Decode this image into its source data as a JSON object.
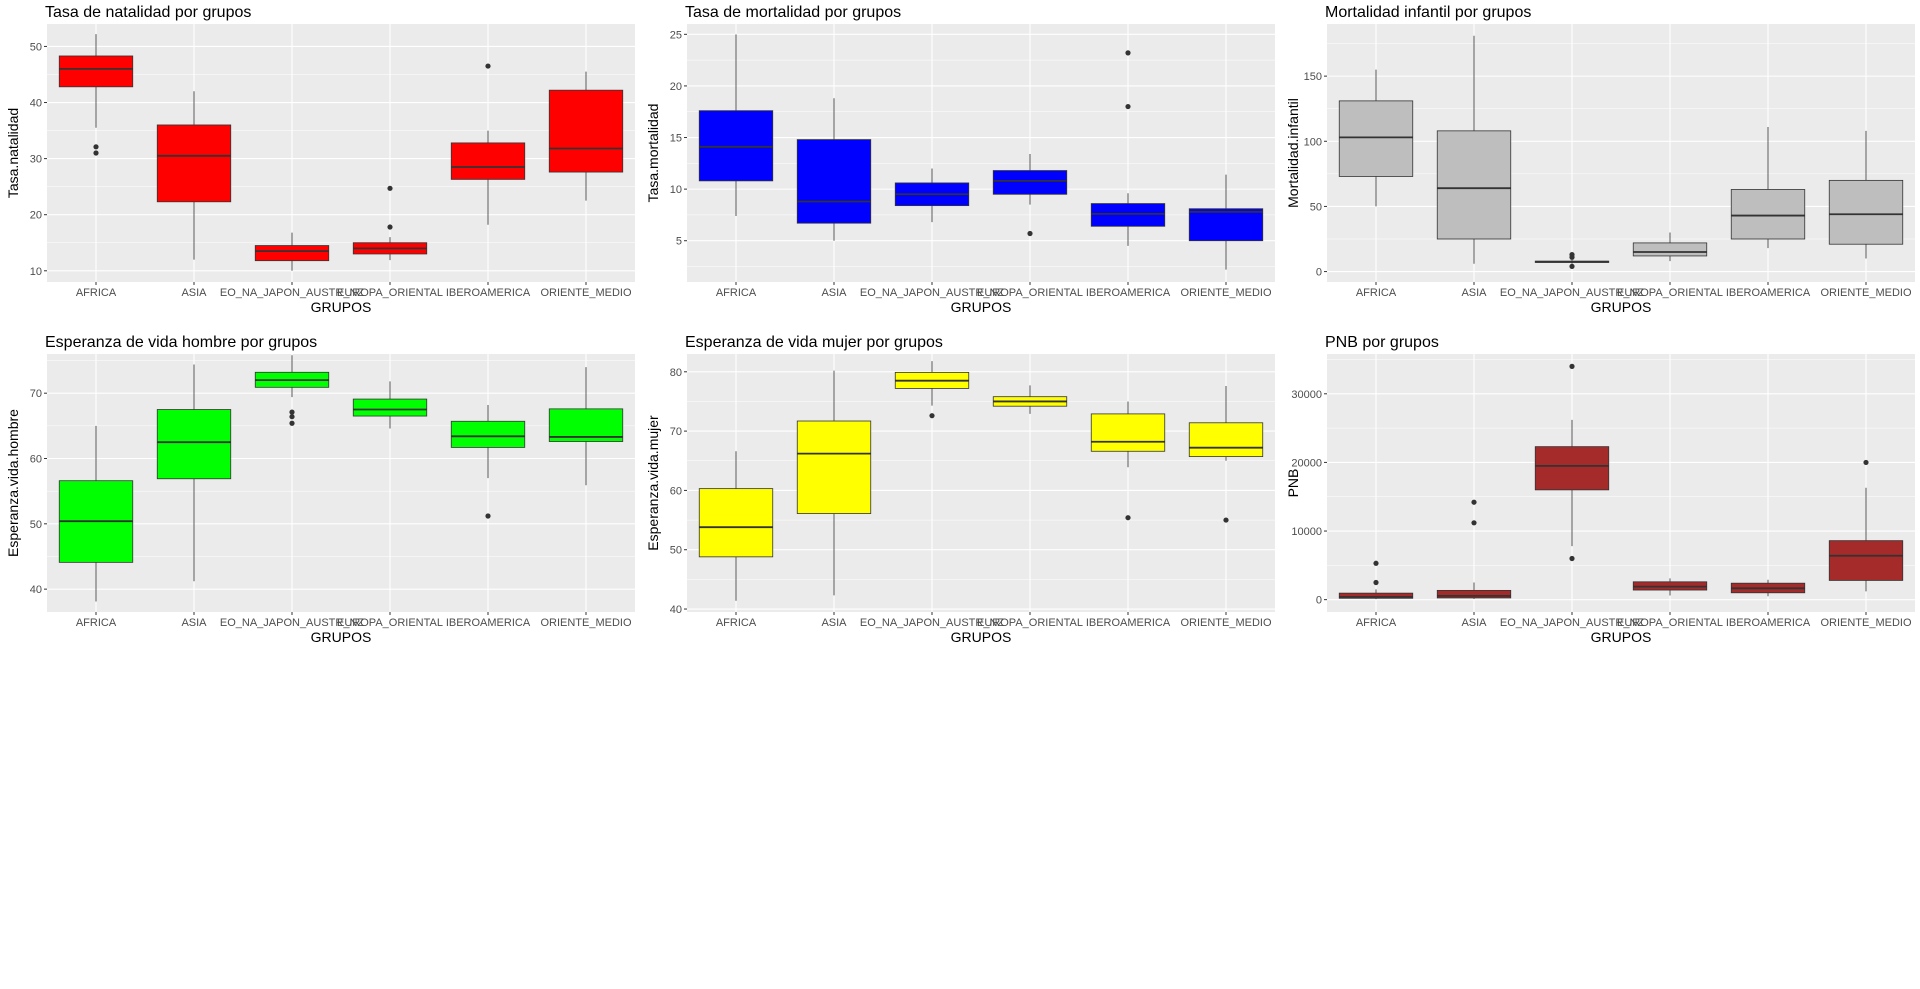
{
  "chart_data": [
    {
      "type": "boxplot",
      "title": "Tasa de natalidad por grupos",
      "xlabel": "GRUPOS",
      "ylabel": "Tasa.natalidad",
      "fill": "#ff0000",
      "categories": [
        "AFRICA",
        "ASIA",
        "EO_NA_JAPON_AUSTR_NZ",
        "EUROPA_ORIENTAL",
        "IBEROAMERICA",
        "ORIENTE_MEDIO"
      ],
      "ylim": [
        8,
        54
      ],
      "yticks": [
        10,
        20,
        30,
        40,
        50
      ],
      "boxes": [
        {
          "whisker_low": 35.5,
          "q1": 42.8,
          "median": 46.0,
          "q3": 48.3,
          "whisker_high": 52.2,
          "outliers": [
            31.0,
            32.1
          ]
        },
        {
          "whisker_low": 12.0,
          "q1": 22.3,
          "median": 30.5,
          "q3": 36.0,
          "whisker_high": 42.0,
          "outliers": []
        },
        {
          "whisker_low": 10.0,
          "q1": 11.8,
          "median": 13.5,
          "q3": 14.5,
          "whisker_high": 16.8,
          "outliers": []
        },
        {
          "whisker_low": 11.9,
          "q1": 13.0,
          "median": 14.0,
          "q3": 15.0,
          "whisker_high": 16.0,
          "outliers": [
            17.8,
            24.7
          ]
        },
        {
          "whisker_low": 18.2,
          "q1": 26.3,
          "median": 28.5,
          "q3": 32.8,
          "whisker_high": 35.0,
          "outliers": [
            46.5
          ]
        },
        {
          "whisker_low": 22.5,
          "q1": 27.6,
          "median": 31.8,
          "q3": 42.2,
          "whisker_high": 45.5,
          "outliers": []
        }
      ]
    },
    {
      "type": "boxplot",
      "title": "Tasa de mortalidad por grupos",
      "xlabel": "GRUPOS",
      "ylabel": "Tasa.mortalidad",
      "fill": "#0000ff",
      "categories": [
        "AFRICA",
        "ASIA",
        "EO_NA_JAPON_AUSTR_NZ",
        "EUROPA_ORIENTAL",
        "IBEROAMERICA",
        "ORIENTE_MEDIO"
      ],
      "ylim": [
        1,
        26
      ],
      "yticks": [
        5,
        10,
        15,
        20,
        25
      ],
      "boxes": [
        {
          "whisker_low": 7.4,
          "q1": 10.8,
          "median": 14.1,
          "q3": 17.6,
          "whisker_high": 25.0,
          "outliers": []
        },
        {
          "whisker_low": 5.0,
          "q1": 6.7,
          "median": 8.8,
          "q3": 14.8,
          "whisker_high": 18.8,
          "outliers": []
        },
        {
          "whisker_low": 6.8,
          "q1": 8.4,
          "median": 9.5,
          "q3": 10.6,
          "whisker_high": 12.0,
          "outliers": []
        },
        {
          "whisker_low": 8.5,
          "q1": 9.5,
          "median": 10.8,
          "q3": 11.8,
          "whisker_high": 13.4,
          "outliers": [
            5.7
          ]
        },
        {
          "whisker_low": 4.5,
          "q1": 6.4,
          "median": 7.6,
          "q3": 8.6,
          "whisker_high": 9.6,
          "outliers": [
            18.0,
            23.2
          ]
        },
        {
          "whisker_low": 2.2,
          "q1": 5.0,
          "median": 7.8,
          "q3": 8.1,
          "whisker_high": 11.4,
          "outliers": []
        }
      ]
    },
    {
      "type": "boxplot",
      "title": "Mortalidad infantil por grupos",
      "xlabel": "GRUPOS",
      "ylabel": "Mortalidad.infantil",
      "fill": "#bebebe",
      "categories": [
        "AFRICA",
        "ASIA",
        "EO_NA_JAPON_AUSTR_NZ",
        "EUROPA_ORIENTAL",
        "IBEROAMERICA",
        "ORIENTE_MEDIO"
      ],
      "ylim": [
        -8,
        190
      ],
      "yticks": [
        0,
        50,
        100,
        150
      ],
      "boxes": [
        {
          "whisker_low": 50,
          "q1": 73,
          "median": 103,
          "q3": 131,
          "whisker_high": 155,
          "outliers": []
        },
        {
          "whisker_low": 6,
          "q1": 25,
          "median": 64,
          "q3": 108,
          "whisker_high": 181,
          "outliers": []
        },
        {
          "whisker_low": 6,
          "q1": 7,
          "median": 7.5,
          "q3": 8,
          "whisker_high": 9,
          "outliers": [
            4,
            11,
            13
          ]
        },
        {
          "whisker_low": 8,
          "q1": 12,
          "median": 15,
          "q3": 22,
          "whisker_high": 30,
          "outliers": []
        },
        {
          "whisker_low": 18,
          "q1": 25,
          "median": 43,
          "q3": 63,
          "whisker_high": 111,
          "outliers": []
        },
        {
          "whisker_low": 10,
          "q1": 21,
          "median": 44,
          "q3": 70,
          "whisker_high": 108,
          "outliers": []
        }
      ]
    },
    {
      "type": "boxplot",
      "title": "Esperanza de vida hombre por grupos",
      "xlabel": "GRUPOS",
      "ylabel": "Esperanza.vida.hombre",
      "fill": "#00ff00",
      "categories": [
        "AFRICA",
        "ASIA",
        "EO_NA_JAPON_AUSTR_NZ",
        "EUROPA_ORIENTAL",
        "IBEROAMERICA",
        "ORIENTE_MEDIO"
      ],
      "ylim": [
        36.5,
        76
      ],
      "yticks": [
        40,
        50,
        60,
        70
      ],
      "boxes": [
        {
          "whisker_low": 38.1,
          "q1": 44.1,
          "median": 50.4,
          "q3": 56.6,
          "whisker_high": 65.0,
          "outliers": []
        },
        {
          "whisker_low": 41.2,
          "q1": 56.9,
          "median": 62.5,
          "q3": 67.5,
          "whisker_high": 74.4,
          "outliers": []
        },
        {
          "whisker_low": 69.4,
          "q1": 70.9,
          "median": 72.0,
          "q3": 73.2,
          "whisker_high": 75.8,
          "outliers": [
            65.4,
            66.4,
            67.1
          ]
        },
        {
          "whisker_low": 64.6,
          "q1": 66.5,
          "median": 67.5,
          "q3": 69.1,
          "whisker_high": 71.8,
          "outliers": []
        },
        {
          "whisker_low": 57.0,
          "q1": 61.7,
          "median": 63.4,
          "q3": 65.7,
          "whisker_high": 68.2,
          "outliers": [
            51.2
          ]
        },
        {
          "whisker_low": 55.9,
          "q1": 62.6,
          "median": 63.3,
          "q3": 67.6,
          "whisker_high": 74.0,
          "outliers": []
        }
      ]
    },
    {
      "type": "boxplot",
      "title": "Esperanza de vida mujer por grupos",
      "xlabel": "GRUPOS",
      "ylabel": "Esperanza.vida.mujer",
      "fill": "#ffff00",
      "categories": [
        "AFRICA",
        "ASIA",
        "EO_NA_JAPON_AUSTR_NZ",
        "EUROPA_ORIENTAL",
        "IBEROAMERICA",
        "ORIENTE_MEDIO"
      ],
      "ylim": [
        39.5,
        83
      ],
      "yticks": [
        40,
        50,
        60,
        70,
        80
      ],
      "boxes": [
        {
          "whisker_low": 41.4,
          "q1": 48.8,
          "median": 53.8,
          "q3": 60.3,
          "whisker_high": 66.6,
          "outliers": []
        },
        {
          "whisker_low": 42.3,
          "q1": 56.1,
          "median": 66.2,
          "q3": 71.7,
          "whisker_high": 80.2,
          "outliers": []
        },
        {
          "whisker_low": 74.3,
          "q1": 77.2,
          "median": 78.5,
          "q3": 79.9,
          "whisker_high": 81.8,
          "outliers": [
            72.6
          ]
        },
        {
          "whisker_low": 72.9,
          "q1": 74.2,
          "median": 75.0,
          "q3": 75.8,
          "whisker_high": 77.7,
          "outliers": []
        },
        {
          "whisker_low": 63.9,
          "q1": 66.6,
          "median": 68.2,
          "q3": 72.9,
          "whisker_high": 75.0,
          "outliers": [
            55.4
          ]
        },
        {
          "whisker_low": 65.0,
          "q1": 65.7,
          "median": 67.2,
          "q3": 71.4,
          "whisker_high": 77.6,
          "outliers": [
            55.0
          ]
        }
      ]
    },
    {
      "type": "boxplot",
      "title": "PNB por grupos",
      "xlabel": "GRUPOS",
      "ylabel": "PNB",
      "fill": "#a52a2a",
      "categories": [
        "AFRICA",
        "ASIA",
        "EO_NA_JAPON_AUSTR_NZ",
        "EUROPA_ORIENTAL",
        "IBEROAMERICA",
        "ORIENTE_MEDIO"
      ],
      "ylim": [
        -1800,
        35800
      ],
      "yticks": [
        0,
        10000,
        20000,
        30000
      ],
      "boxes": [
        {
          "whisker_low": 80,
          "q1": 200,
          "median": 400,
          "q3": 950,
          "whisker_high": 1500,
          "outliers": [
            2500,
            5300
          ]
        },
        {
          "whisker_low": 100,
          "q1": 250,
          "median": 550,
          "q3": 1350,
          "whisker_high": 2500,
          "outliers": [
            11200,
            14200
          ]
        },
        {
          "whisker_low": 7800,
          "q1": 16000,
          "median": 19500,
          "q3": 22300,
          "whisker_high": 26200,
          "outliers": [
            6000,
            34000
          ]
        },
        {
          "whisker_low": 600,
          "q1": 1400,
          "median": 1900,
          "q3": 2600,
          "whisker_high": 3100,
          "outliers": []
        },
        {
          "whisker_low": 500,
          "q1": 1000,
          "median": 1650,
          "q3": 2400,
          "whisker_high": 2900,
          "outliers": []
        },
        {
          "whisker_low": 1200,
          "q1": 2800,
          "median": 6400,
          "q3": 8600,
          "whisker_high": 16300,
          "outliers": [
            20000
          ]
        }
      ]
    }
  ]
}
